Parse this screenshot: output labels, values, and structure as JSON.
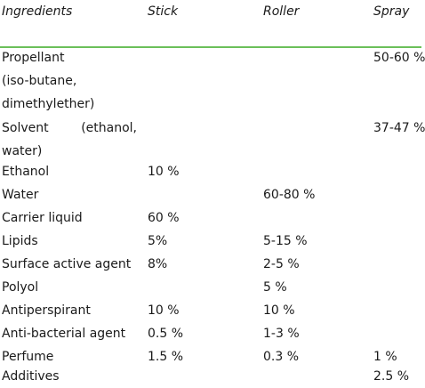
{
  "table": {
    "columns": [
      "Ingredients",
      "Stick",
      "Roller",
      "Spray"
    ],
    "rows": [
      {
        "lines": [
          "Propellant",
          "(iso-butane,",
          "dimethylether)"
        ],
        "stick": "",
        "roller": "",
        "spray": "50-60 %"
      },
      {
        "lines": [
          "Solvent",
          "(ethanol,",
          "water)"
        ],
        "stick": "",
        "roller": "",
        "spray": "37-47 %"
      },
      {
        "lines": [
          "Ethanol"
        ],
        "stick": "10 %",
        "roller": "",
        "spray": ""
      },
      {
        "lines": [
          "Water"
        ],
        "stick": "",
        "roller": "60-80 %",
        "spray": ""
      },
      {
        "lines": [
          "Carrier liquid"
        ],
        "stick": "60 %",
        "roller": "",
        "spray": ""
      },
      {
        "lines": [
          "Lipids"
        ],
        "stick": "5%",
        "roller": "5-15 %",
        "spray": ""
      },
      {
        "lines": [
          "Surface active agent"
        ],
        "stick": "8%",
        "roller": "2-5 %",
        "spray": ""
      },
      {
        "lines": [
          "Polyol"
        ],
        "stick": "",
        "roller": "5 %",
        "spray": ""
      },
      {
        "lines": [
          "Antiperspirant"
        ],
        "stick": "10 %",
        "roller": "10 %",
        "spray": ""
      },
      {
        "lines": [
          "Anti-bacterial agent"
        ],
        "stick": "0.5 %",
        "roller": "1-3 %",
        "spray": ""
      },
      {
        "lines": [
          "Perfume"
        ],
        "stick": "1.5 %",
        "roller": "0.3 %",
        "spray": "1 %"
      },
      {
        "lines": [
          "Additives"
        ],
        "stick": "",
        "roller": "",
        "spray": "2.5 %"
      }
    ]
  }
}
